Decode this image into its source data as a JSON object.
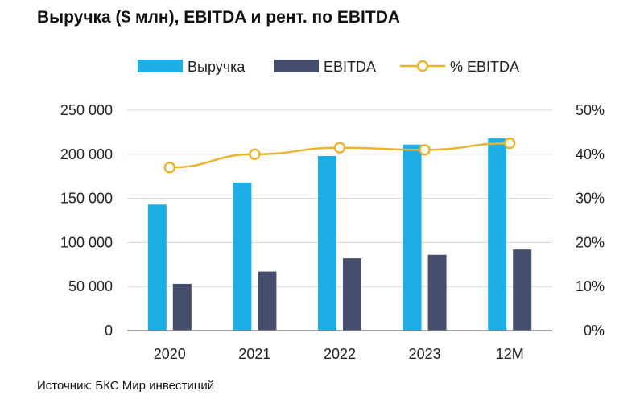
{
  "title": "Выручка ($ млн), EBITDA и рент. по EBITDA",
  "source": "Источник: БКС Мир инвестиций",
  "colors": {
    "revenue": "#1eaee6",
    "ebitda": "#454f6d",
    "margin": "#e7b52e",
    "axis": "#8a8a8a",
    "grid": "#d6d6d6"
  },
  "chart_data": {
    "type": "bar",
    "categories": [
      "2020",
      "2021",
      "2022",
      "2023",
      "12M"
    ],
    "series": [
      {
        "name": "Выручка",
        "type": "bar",
        "axis": "left",
        "values": [
          143000,
          168000,
          198000,
          211000,
          218000
        ]
      },
      {
        "name": "EBITDA",
        "type": "bar",
        "axis": "left",
        "values": [
          53000,
          67000,
          82000,
          86000,
          92000
        ]
      },
      {
        "name": "% EBITDA",
        "type": "line",
        "axis": "right",
        "values": [
          37,
          40,
          41.5,
          41,
          42.5
        ]
      }
    ],
    "ylim_left": [
      0,
      250000
    ],
    "ylim_right": [
      0,
      50
    ],
    "left_ticks": [
      "0",
      "50 000",
      "100 000",
      "150 000",
      "200 000",
      "250 000"
    ],
    "right_ticks": [
      "0%",
      "10%",
      "20%",
      "30%",
      "40%",
      "50%"
    ],
    "grid": true,
    "legend_position": "top"
  }
}
